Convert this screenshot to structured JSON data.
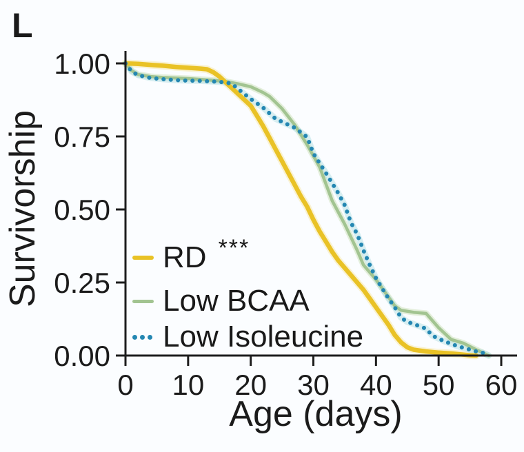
{
  "panel_label": "L",
  "colors": {
    "rd": "#e9c226",
    "rd_halo": "#f7e9ae",
    "low_bcaa": "#a2c491",
    "low_bcaa_halo": "#d6e7c8",
    "low_isoleucine": "#2487b2",
    "low_isoleucine_halo": "#b4dfe4",
    "axis": "#1d1d1d",
    "text": "#161616",
    "background": "#fbfdff"
  },
  "legend": {
    "items": [
      {
        "label": "RD",
        "annotation": "***",
        "series": "rd",
        "style": "solid-thick"
      },
      {
        "label": "Low BCAA",
        "annotation": "",
        "series": "low_bcaa",
        "style": "solid-thin"
      },
      {
        "label": "Low Isoleucine",
        "annotation": "",
        "series": "low_isoleucine",
        "style": "dots"
      }
    ]
  },
  "chart_data": {
    "type": "line",
    "title": "",
    "xlabel": "Age (days)",
    "ylabel": "Survivorship",
    "xlim": [
      0,
      60
    ],
    "ylim": [
      0,
      1
    ],
    "grid": false,
    "legend_position": "inside-lower-left",
    "x_ticks": [
      {
        "value": 0,
        "label": "0"
      },
      {
        "value": 10,
        "label": "10"
      },
      {
        "value": 20,
        "label": "20"
      },
      {
        "value": 30,
        "label": "30"
      },
      {
        "value": 40,
        "label": "40"
      },
      {
        "value": 50,
        "label": "50"
      },
      {
        "value": 60,
        "label": "60"
      }
    ],
    "y_ticks": [
      {
        "value": 1.0,
        "label": "1.00"
      },
      {
        "value": 0.75,
        "label": "0.75"
      },
      {
        "value": 0.5,
        "label": "0.50"
      },
      {
        "value": 0.25,
        "label": "0.25"
      },
      {
        "value": 0.0,
        "label": "0.00"
      }
    ],
    "series": [
      {
        "name": "RD",
        "significance": "***",
        "color_key": "rd",
        "line_style": "solid",
        "points": [
          [
            0,
            1.0
          ],
          [
            2,
            0.998
          ],
          [
            4,
            0.995
          ],
          [
            6,
            0.992
          ],
          [
            8,
            0.988
          ],
          [
            10,
            0.985
          ],
          [
            12,
            0.982
          ],
          [
            13,
            0.98
          ],
          [
            14,
            0.97
          ],
          [
            15,
            0.955
          ],
          [
            16,
            0.935
          ],
          [
            17,
            0.915
          ],
          [
            18,
            0.895
          ],
          [
            19,
            0.875
          ],
          [
            20,
            0.855
          ],
          [
            21,
            0.82
          ],
          [
            22,
            0.785
          ],
          [
            23,
            0.745
          ],
          [
            24,
            0.705
          ],
          [
            25,
            0.665
          ],
          [
            26,
            0.625
          ],
          [
            27,
            0.585
          ],
          [
            28,
            0.545
          ],
          [
            29,
            0.51
          ],
          [
            30,
            0.465
          ],
          [
            31,
            0.425
          ],
          [
            32,
            0.39
          ],
          [
            33,
            0.355
          ],
          [
            34,
            0.325
          ],
          [
            35,
            0.3
          ],
          [
            36,
            0.275
          ],
          [
            37,
            0.25
          ],
          [
            38,
            0.225
          ],
          [
            39,
            0.195
          ],
          [
            40,
            0.165
          ],
          [
            41,
            0.135
          ],
          [
            42,
            0.105
          ],
          [
            43,
            0.07
          ],
          [
            44,
            0.045
          ],
          [
            45,
            0.028
          ],
          [
            46,
            0.02
          ],
          [
            48,
            0.014
          ],
          [
            50,
            0.01
          ],
          [
            52,
            0.007
          ],
          [
            54,
            0.003
          ],
          [
            55,
            0.001
          ],
          [
            56,
            0.0
          ]
        ]
      },
      {
        "name": "Low BCAA",
        "significance": "",
        "color_key": "low_bcaa",
        "line_style": "solid",
        "points": [
          [
            0,
            1.0
          ],
          [
            1,
            0.975
          ],
          [
            2,
            0.962
          ],
          [
            4,
            0.955
          ],
          [
            6,
            0.952
          ],
          [
            8,
            0.95
          ],
          [
            10,
            0.948
          ],
          [
            12,
            0.945
          ],
          [
            14,
            0.942
          ],
          [
            16,
            0.938
          ],
          [
            18,
            0.93
          ],
          [
            20,
            0.92
          ],
          [
            22,
            0.9
          ],
          [
            23,
            0.887
          ],
          [
            25,
            0.845
          ],
          [
            27,
            0.79
          ],
          [
            29,
            0.722
          ],
          [
            31,
            0.645
          ],
          [
            33,
            0.53
          ],
          [
            35,
            0.45
          ],
          [
            37,
            0.36
          ],
          [
            38,
            0.31
          ],
          [
            40,
            0.26
          ],
          [
            42,
            0.2
          ],
          [
            43,
            0.17
          ],
          [
            44,
            0.155
          ],
          [
            46,
            0.148
          ],
          [
            48,
            0.144
          ],
          [
            50,
            0.095
          ],
          [
            52,
            0.055
          ],
          [
            54,
            0.042
          ],
          [
            56,
            0.02
          ],
          [
            58,
            0.0
          ]
        ]
      },
      {
        "name": "Low Isoleucine",
        "significance": "",
        "color_key": "low_isoleucine",
        "line_style": "dotted",
        "points": [
          [
            0,
            1.0
          ],
          [
            1,
            0.972
          ],
          [
            2,
            0.96
          ],
          [
            4,
            0.95
          ],
          [
            6,
            0.946
          ],
          [
            8,
            0.943
          ],
          [
            10,
            0.941
          ],
          [
            12,
            0.94
          ],
          [
            14,
            0.938
          ],
          [
            16,
            0.935
          ],
          [
            17,
            0.93
          ],
          [
            18,
            0.912
          ],
          [
            20,
            0.878
          ],
          [
            22,
            0.848
          ],
          [
            24,
            0.81
          ],
          [
            25,
            0.8
          ],
          [
            27,
            0.78
          ],
          [
            29,
            0.748
          ],
          [
            30,
            0.692
          ],
          [
            31,
            0.658
          ],
          [
            32,
            0.625
          ],
          [
            33,
            0.59
          ],
          [
            34,
            0.555
          ],
          [
            35,
            0.515
          ],
          [
            36,
            0.455
          ],
          [
            37,
            0.415
          ],
          [
            38,
            0.36
          ],
          [
            39,
            0.31
          ],
          [
            40,
            0.265
          ],
          [
            41,
            0.23
          ],
          [
            42,
            0.195
          ],
          [
            43,
            0.165
          ],
          [
            44,
            0.13
          ],
          [
            45,
            0.115
          ],
          [
            46,
            0.108
          ],
          [
            48,
            0.092
          ],
          [
            49,
            0.068
          ],
          [
            51,
            0.048
          ],
          [
            53,
            0.032
          ],
          [
            55,
            0.02
          ],
          [
            56,
            0.014
          ],
          [
            57,
            0.01
          ],
          [
            58,
            0.0
          ]
        ]
      }
    ]
  }
}
